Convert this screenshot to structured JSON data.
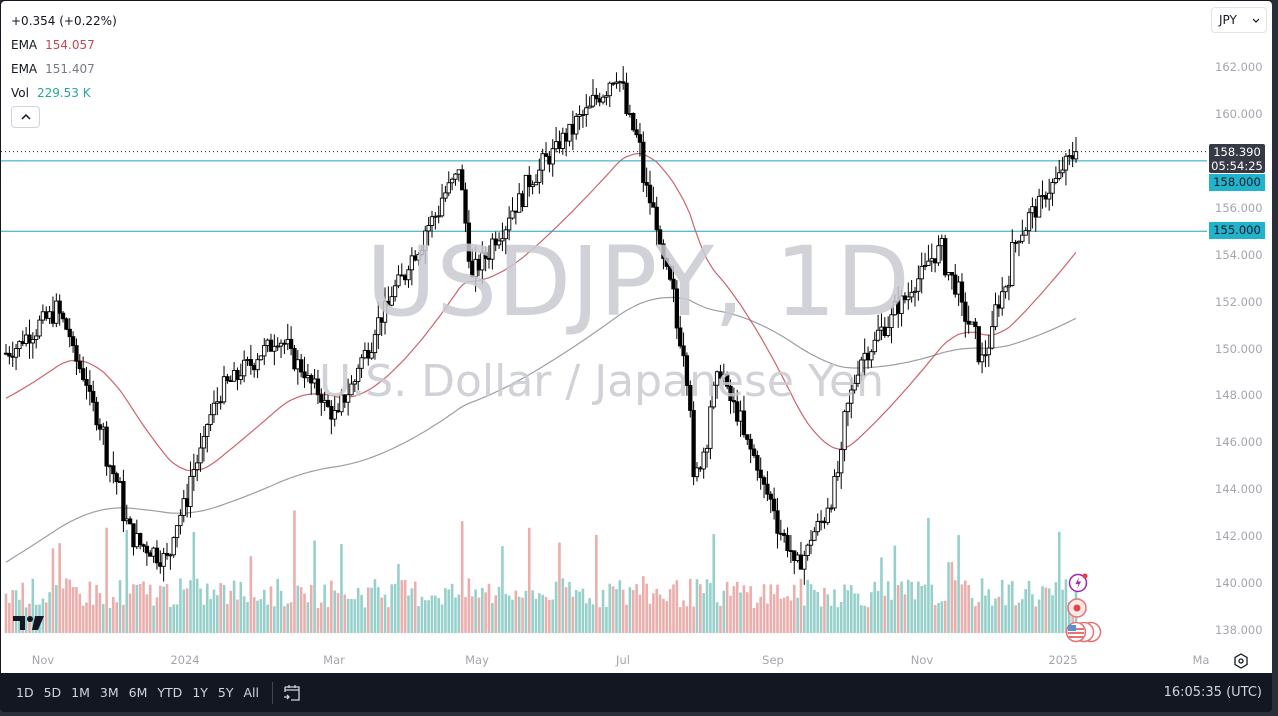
{
  "legend": {
    "change": "+0.354 (+0.22%)",
    "ema1_label": "EMA",
    "ema1_value": "154.057",
    "ema2_label": "EMA",
    "ema2_value": "151.407",
    "vol_label": "Vol",
    "vol_value": "229.53 K"
  },
  "currency_select": {
    "value": "JPY"
  },
  "watermark": {
    "symbol": "USDJPY, 1D",
    "description": "U.S. Dollar / Japanese Yen"
  },
  "price_tags": {
    "current_price": "158.390",
    "countdown": "05:54:25",
    "level_1": "158.000",
    "level_2": "155.000"
  },
  "colors": {
    "up_volume": "#97d0cb",
    "down_volume": "#eaaeac",
    "ema_fast": "#c24a52",
    "ema_slow": "#8a8d96",
    "level_line": "#22a4bd",
    "candle": "#000000"
  },
  "bottom_bar": {
    "ranges": [
      "1D",
      "5D",
      "1M",
      "3M",
      "6M",
      "YTD",
      "1Y",
      "5Y",
      "All"
    ],
    "clock": "16:05:35 (UTC)"
  },
  "chart_data": {
    "type": "candlestick",
    "title": "USDJPY, 1D",
    "subtitle": "U.S. Dollar / Japanese Yen",
    "xlabel": "",
    "ylabel": "JPY",
    "ylim": [
      137.3,
      163.0
    ],
    "y_ticks": [
      "162.000",
      "160.000",
      "158.000",
      "156.000",
      "154.000",
      "152.000",
      "150.000",
      "148.000",
      "146.000",
      "144.000",
      "142.000",
      "140.000",
      "138.000"
    ],
    "x_ticks": [
      "Nov",
      "2024",
      "Mar",
      "May",
      "Jul",
      "Sep",
      "Nov",
      "2025",
      "Ma"
    ],
    "horizontal_levels": [
      158.0,
      155.0
    ],
    "last_price": 158.39,
    "indicators": [
      {
        "name": "EMA (fast)",
        "last": 154.057
      },
      {
        "name": "EMA (slow)",
        "last": 151.407
      },
      {
        "name": "Volume",
        "last": "229.53K"
      }
    ],
    "close_path_keypoints": [
      {
        "date": "2023-10-23",
        "close": 149.8
      },
      {
        "date": "2023-11-13",
        "close": 151.7
      },
      {
        "date": "2023-11-28",
        "close": 147.5
      },
      {
        "date": "2023-12-14",
        "close": 141.9
      },
      {
        "date": "2023-12-28",
        "close": 141.0
      },
      {
        "date": "2024-01-19",
        "close": 148.1
      },
      {
        "date": "2024-02-13",
        "close": 150.5
      },
      {
        "date": "2024-03-08",
        "close": 147.0
      },
      {
        "date": "2024-03-27",
        "close": 151.4
      },
      {
        "date": "2024-04-29",
        "close": 157.8
      },
      {
        "date": "2024-05-03",
        "close": 152.9
      },
      {
        "date": "2024-05-29",
        "close": 157.3
      },
      {
        "date": "2024-06-26",
        "close": 160.8
      },
      {
        "date": "2024-07-03",
        "close": 161.7
      },
      {
        "date": "2024-07-11",
        "close": 159.0
      },
      {
        "date": "2024-07-31",
        "close": 150.0
      },
      {
        "date": "2024-08-05",
        "close": 144.2
      },
      {
        "date": "2024-08-15",
        "close": 149.1
      },
      {
        "date": "2024-09-16",
        "close": 140.6
      },
      {
        "date": "2024-10-01",
        "close": 143.6
      },
      {
        "date": "2024-10-11",
        "close": 149.2
      },
      {
        "date": "2024-11-15",
        "close": 154.3
      },
      {
        "date": "2024-12-03",
        "close": 149.5
      },
      {
        "date": "2024-12-18",
        "close": 154.9
      },
      {
        "date": "2025-01-08",
        "close": 158.0
      },
      {
        "date": "2025-01-10",
        "close": 158.39
      }
    ]
  }
}
